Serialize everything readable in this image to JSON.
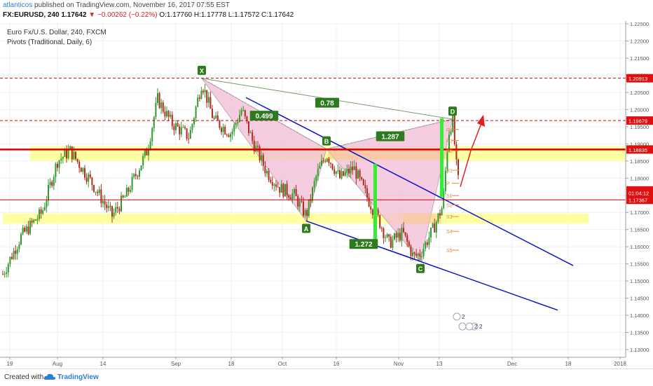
{
  "header": {
    "author": "atlanticos",
    "published": "published on TradingView.com, November 16, 2017 07:55 EST",
    "symbol": "FX:EURUSD, 240",
    "price": "1.17642",
    "change": "▼ −0.00262 (−0.22%)",
    "ohlc": "O:1.17760 H:1.17778 L:1.17572 C:1.17642"
  },
  "legend": {
    "instrument": "Euro Fx/U.S. Dollar, 240, FXCM",
    "indicator": "Pivots (Traditional, Daily, 6)"
  },
  "footer": {
    "created": "Created with",
    "brand": "TradingView"
  },
  "colors": {
    "bull": "#2e9a2e",
    "bear": "#b02a1a",
    "pink": "#f4bcd8",
    "yellow": "#ffff99",
    "orange_zone": "#f9c98c",
    "channel": "#0a13c9",
    "resistance": "#d40000",
    "label_green": "#2d7a1f",
    "bar_green": "#33ee33"
  },
  "chart_data": {
    "type": "candlestick",
    "title": "Euro Fx/U.S. Dollar, 240, FXCM",
    "y_ticks": [
      "1.22500",
      "1.22000",
      "1.21500",
      "1.21000",
      "1.20500",
      "1.20000",
      "1.19500",
      "1.19000",
      "1.18500",
      "1.18000",
      "1.17500",
      "1.17000",
      "1.16500",
      "1.16000",
      "1.15500",
      "1.15000",
      "1.14500",
      "1.14000",
      "1.13500",
      "1.13000"
    ],
    "y_range": [
      1.127,
      1.228
    ],
    "x_ticks": [
      "19",
      "Aug",
      "14",
      "Sep",
      "18",
      "Oct",
      "16",
      "Nov",
      "13",
      "Dec",
      "18",
      "2018"
    ],
    "price_labels": [
      {
        "value": 1.20913,
        "text": "1.20913",
        "kind": "resistance"
      },
      {
        "value": 1.19679,
        "text": "1.19679",
        "kind": "resistance"
      },
      {
        "value": 1.18835,
        "text": "1.18835",
        "kind": "resistance"
      },
      {
        "value": 1.17642,
        "text": "1.17642",
        "kind": "last"
      },
      {
        "value": 1.17367,
        "text": "01:04:12",
        "kind": "timer"
      },
      {
        "value": 1.17367,
        "text": "1.17367",
        "kind": "resistance"
      }
    ],
    "pattern_points": [
      {
        "label": "X",
        "x": 288,
        "price": 1.2091
      },
      {
        "label": "A",
        "x": 437,
        "price": 1.1675
      },
      {
        "label": "B",
        "x": 466,
        "price": 1.1885
      },
      {
        "label": "C",
        "x": 600,
        "price": 1.1558
      },
      {
        "label": "D",
        "x": 646,
        "price": 1.1972
      }
    ],
    "ratios": [
      {
        "text": "0.78",
        "x": 467,
        "price": 1.202
      },
      {
        "text": "0.499",
        "x": 377,
        "price": 1.1982
      },
      {
        "text": "1.287",
        "x": 557,
        "price": 1.1922
      },
      {
        "text": "1.272",
        "x": 519,
        "price": 1.1608
      }
    ],
    "pivot_labels": [
      {
        "text": "R4",
        "price": 1.1942
      },
      {
        "text": "R3",
        "price": 1.191
      },
      {
        "text": "R2",
        "price": 1.188
      },
      {
        "text": "R1",
        "price": 1.1823
      },
      {
        "text": "P",
        "price": 1.1785
      },
      {
        "text": "S1",
        "price": 1.1749
      },
      {
        "text": "S2",
        "price": 1.1722
      },
      {
        "text": "S3",
        "price": 1.1688
      },
      {
        "text": "S4",
        "price": 1.1645
      },
      {
        "text": "S5",
        "price": 1.159
      }
    ],
    "event_icons": [
      "2",
      "5",
      "2",
      "2"
    ]
  }
}
